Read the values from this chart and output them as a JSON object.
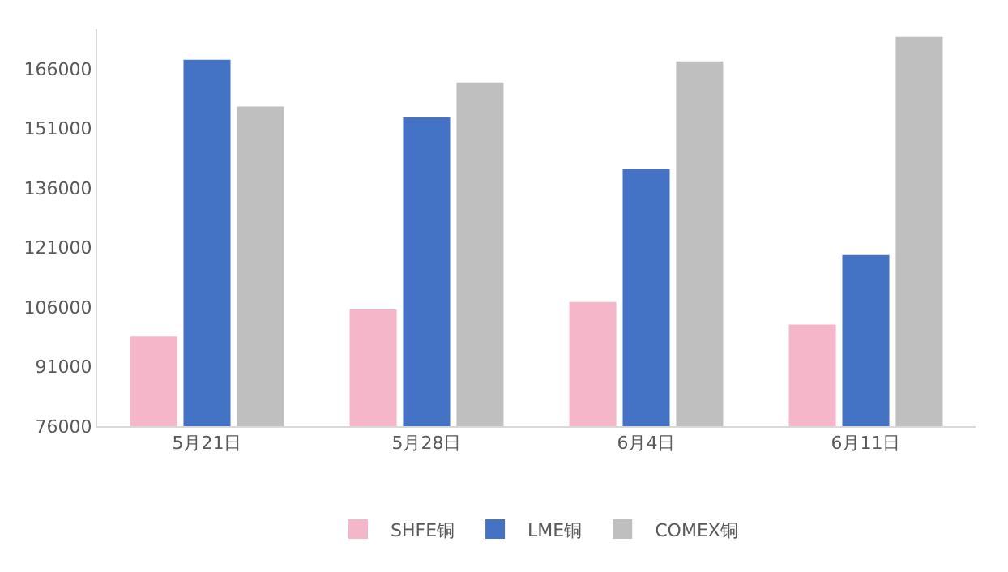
{
  "chart_data": {
    "type": "bar",
    "categories": [
      "5月21日",
      "5月28日",
      "6月4日",
      "6月11日"
    ],
    "series": [
      {
        "name": "SHFE铜",
        "color": "#f4b6c8",
        "values": [
          98600,
          105400,
          107300,
          101600
        ]
      },
      {
        "name": "LME铜",
        "color": "#4472c4",
        "values": [
          168300,
          153800,
          140800,
          119100
        ]
      },
      {
        "name": "COMEX铜",
        "color": "#bfbfbf",
        "values": [
          156500,
          162600,
          167900,
          174000
        ]
      }
    ],
    "ylim": [
      76000,
      176000
    ],
    "yticks": [
      76000,
      91000,
      106000,
      121000,
      136000,
      151000,
      166000
    ],
    "grid": false,
    "legend": "bottom"
  }
}
